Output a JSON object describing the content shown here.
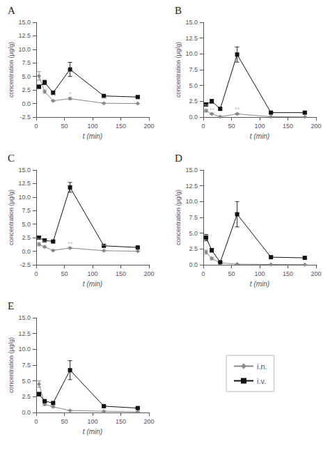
{
  "chart_data": [
    {
      "type": "line",
      "title": "A",
      "xlabel": "t (min)",
      "ylabel": "concentration (μg/g)",
      "x": [
        5,
        15,
        30,
        60,
        120,
        180
      ],
      "series": [
        {
          "name": "i.n.",
          "color": "#888888",
          "marker": "diamond",
          "values": [
            5.1,
            2.2,
            0.5,
            0.9,
            0.05,
            0.0
          ],
          "yerr": [
            0.8,
            0.3,
            0.1,
            0.2,
            0.05,
            0.02
          ]
        },
        {
          "name": "i.v.",
          "color": "#111111",
          "marker": "square",
          "values": [
            3.1,
            3.9,
            2.0,
            6.3,
            1.4,
            1.2
          ],
          "yerr": [
            0.3,
            0.4,
            0.3,
            1.3,
            0.2,
            0.15
          ]
        }
      ],
      "annotations": [
        {
          "x": 30,
          "y": 0.65,
          "text": "**"
        },
        {
          "x": 60,
          "y": 1.05,
          "text": "*"
        },
        {
          "x": 120,
          "y": 0.18,
          "text": "**"
        }
      ],
      "xlim": [
        0,
        200
      ],
      "xticks": [
        0,
        50,
        100,
        150,
        200
      ],
      "ylim": [
        -2.5,
        15.0
      ],
      "yticks": [
        -2.5,
        {
          "value": 0,
          "label": "0.0"
        },
        2.5,
        {
          "value": 5.0,
          "label": "5.0"
        },
        {
          "value": 7.5,
          "label": "7.5"
        },
        {
          "value": 10.0,
          "label": "10.0"
        },
        {
          "value": 12.5,
          "label": "12.5"
        },
        {
          "value": 15.0,
          "label": "15.0"
        }
      ],
      "grid": false
    },
    {
      "type": "line",
      "title": "B",
      "xlabel": "t (min)",
      "ylabel": "concentration (μg/g)",
      "x": [
        5,
        15,
        30,
        60,
        120,
        180
      ],
      "series": [
        {
          "name": "i.n.",
          "color": "#888888",
          "marker": "diamond",
          "values": [
            1.0,
            0.5,
            0.05,
            0.5,
            0.05,
            0.02
          ],
          "yerr": [
            0.2,
            0.1,
            0.05,
            0.1,
            0.02,
            0.02
          ]
        },
        {
          "name": "i.v.",
          "color": "#111111",
          "marker": "square",
          "values": [
            2.0,
            2.5,
            1.3,
            9.9,
            0.7,
            0.7
          ],
          "yerr": [
            0.2,
            0.3,
            0.2,
            1.2,
            0.1,
            0.1
          ]
        }
      ],
      "annotations": [
        {
          "x": 5,
          "y": 1.15,
          "text": "**"
        },
        {
          "x": 15,
          "y": 0.55,
          "text": "**"
        },
        {
          "x": 60,
          "y": 0.62,
          "text": "**"
        }
      ],
      "xlim": [
        0,
        200
      ],
      "xticks": [
        0,
        50,
        100,
        150,
        200
      ],
      "ylim": [
        0,
        15.0
      ],
      "yticks": [
        {
          "value": 0,
          "label": "0.0"
        },
        2.5,
        {
          "value": 5.0,
          "label": "5.0"
        },
        {
          "value": 7.5,
          "label": "7.5"
        },
        {
          "value": 10.0,
          "label": "10.0"
        },
        {
          "value": 12.5,
          "label": "12.5"
        },
        {
          "value": 15.0,
          "label": "15.0"
        }
      ],
      "grid": false
    },
    {
      "type": "line",
      "title": "C",
      "xlabel": "t (min)",
      "ylabel": "concentration (μg/g)",
      "x": [
        5,
        15,
        30,
        60,
        120,
        180
      ],
      "series": [
        {
          "name": "i.n.",
          "color": "#888888",
          "marker": "diamond",
          "values": [
            1.3,
            0.8,
            0.15,
            0.6,
            0.1,
            0.0
          ],
          "yerr": [
            0.3,
            0.15,
            0.05,
            0.1,
            0.05,
            0.02
          ]
        },
        {
          "name": "i.v.",
          "color": "#111111",
          "marker": "square",
          "values": [
            2.5,
            2.0,
            1.8,
            11.8,
            1.0,
            0.7
          ],
          "yerr": [
            0.3,
            0.25,
            0.2,
            0.9,
            0.1,
            0.1
          ]
        }
      ],
      "annotations": [
        {
          "x": 5,
          "y": 1.45,
          "text": "**"
        },
        {
          "x": 15,
          "y": 0.95,
          "text": "**"
        },
        {
          "x": 60,
          "y": 0.68,
          "text": "**"
        },
        {
          "x": 120,
          "y": 0.28,
          "text": "**"
        }
      ],
      "xlim": [
        0,
        200
      ],
      "xticks": [
        0,
        50,
        100,
        150,
        200
      ],
      "ylim": [
        -2.5,
        15.0
      ],
      "yticks": [
        -2.5,
        {
          "value": 0,
          "label": "0.0"
        },
        2.5,
        {
          "value": 5.0,
          "label": "5.0"
        },
        {
          "value": 7.5,
          "label": "7.5"
        },
        {
          "value": 10.0,
          "label": "10.0"
        },
        {
          "value": 12.5,
          "label": "12.5"
        },
        {
          "value": 15.0,
          "label": "15.0"
        }
      ],
      "grid": false
    },
    {
      "type": "line",
      "title": "D",
      "xlabel": "t (min)",
      "ylabel": "concentration (μg/g)",
      "x": [
        5,
        15,
        30,
        60,
        120,
        180
      ],
      "series": [
        {
          "name": "i.n.",
          "color": "#888888",
          "marker": "diamond",
          "values": [
            2.0,
            1.0,
            0.3,
            0.1,
            0.05,
            0.02
          ],
          "yerr": [
            0.3,
            0.2,
            0.05,
            0.05,
            0.02,
            0.02
          ]
        },
        {
          "name": "i.v.",
          "color": "#111111",
          "marker": "square",
          "values": [
            4.3,
            2.3,
            0.4,
            8.0,
            1.2,
            1.1
          ],
          "yerr": [
            0.5,
            0.3,
            0.1,
            2.0,
            0.15,
            0.1
          ]
        }
      ],
      "xlim": [
        0,
        200
      ],
      "xticks": [
        0,
        50,
        100,
        150,
        200
      ],
      "ylim": [
        0,
        15.0
      ],
      "yticks": [
        {
          "value": 0,
          "label": "0.0"
        },
        2.5,
        {
          "value": 5.0,
          "label": "5.0"
        },
        {
          "value": 7.5,
          "label": "7.5"
        },
        {
          "value": 10.0,
          "label": "10.0"
        },
        {
          "value": 12.5,
          "label": "12.5"
        },
        {
          "value": 15.0,
          "label": "15.0"
        }
      ],
      "grid": false
    },
    {
      "type": "line",
      "title": "E",
      "xlabel": "t (min)",
      "ylabel": "concentration (μg/g)",
      "x": [
        5,
        15,
        30,
        60,
        120,
        180
      ],
      "series": [
        {
          "name": "i.n.",
          "color": "#888888",
          "marker": "diamond",
          "values": [
            4.5,
            1.3,
            0.9,
            0.3,
            0.2,
            0.1
          ],
          "yerr": [
            0.5,
            0.2,
            0.1,
            0.05,
            0.05,
            0.05
          ]
        },
        {
          "name": "i.v.",
          "color": "#111111",
          "marker": "square",
          "values": [
            2.9,
            1.8,
            1.5,
            6.7,
            1.0,
            0.7
          ],
          "yerr": [
            0.3,
            0.2,
            0.15,
            1.5,
            0.12,
            0.1
          ]
        }
      ],
      "xlim": [
        0,
        200
      ],
      "xticks": [
        0,
        50,
        100,
        150,
        200
      ],
      "ylim": [
        0,
        15.0
      ],
      "yticks": [
        {
          "value": 0,
          "label": "0.0"
        },
        2.5,
        {
          "value": 5.0,
          "label": "5.0"
        },
        {
          "value": 7.5,
          "label": "7.5"
        },
        {
          "value": 10.0,
          "label": "10.0"
        },
        {
          "value": 12.5,
          "label": "12.5"
        },
        {
          "value": 15.0,
          "label": "15.0"
        }
      ],
      "grid": false,
      "legend": "lower right"
    }
  ]
}
